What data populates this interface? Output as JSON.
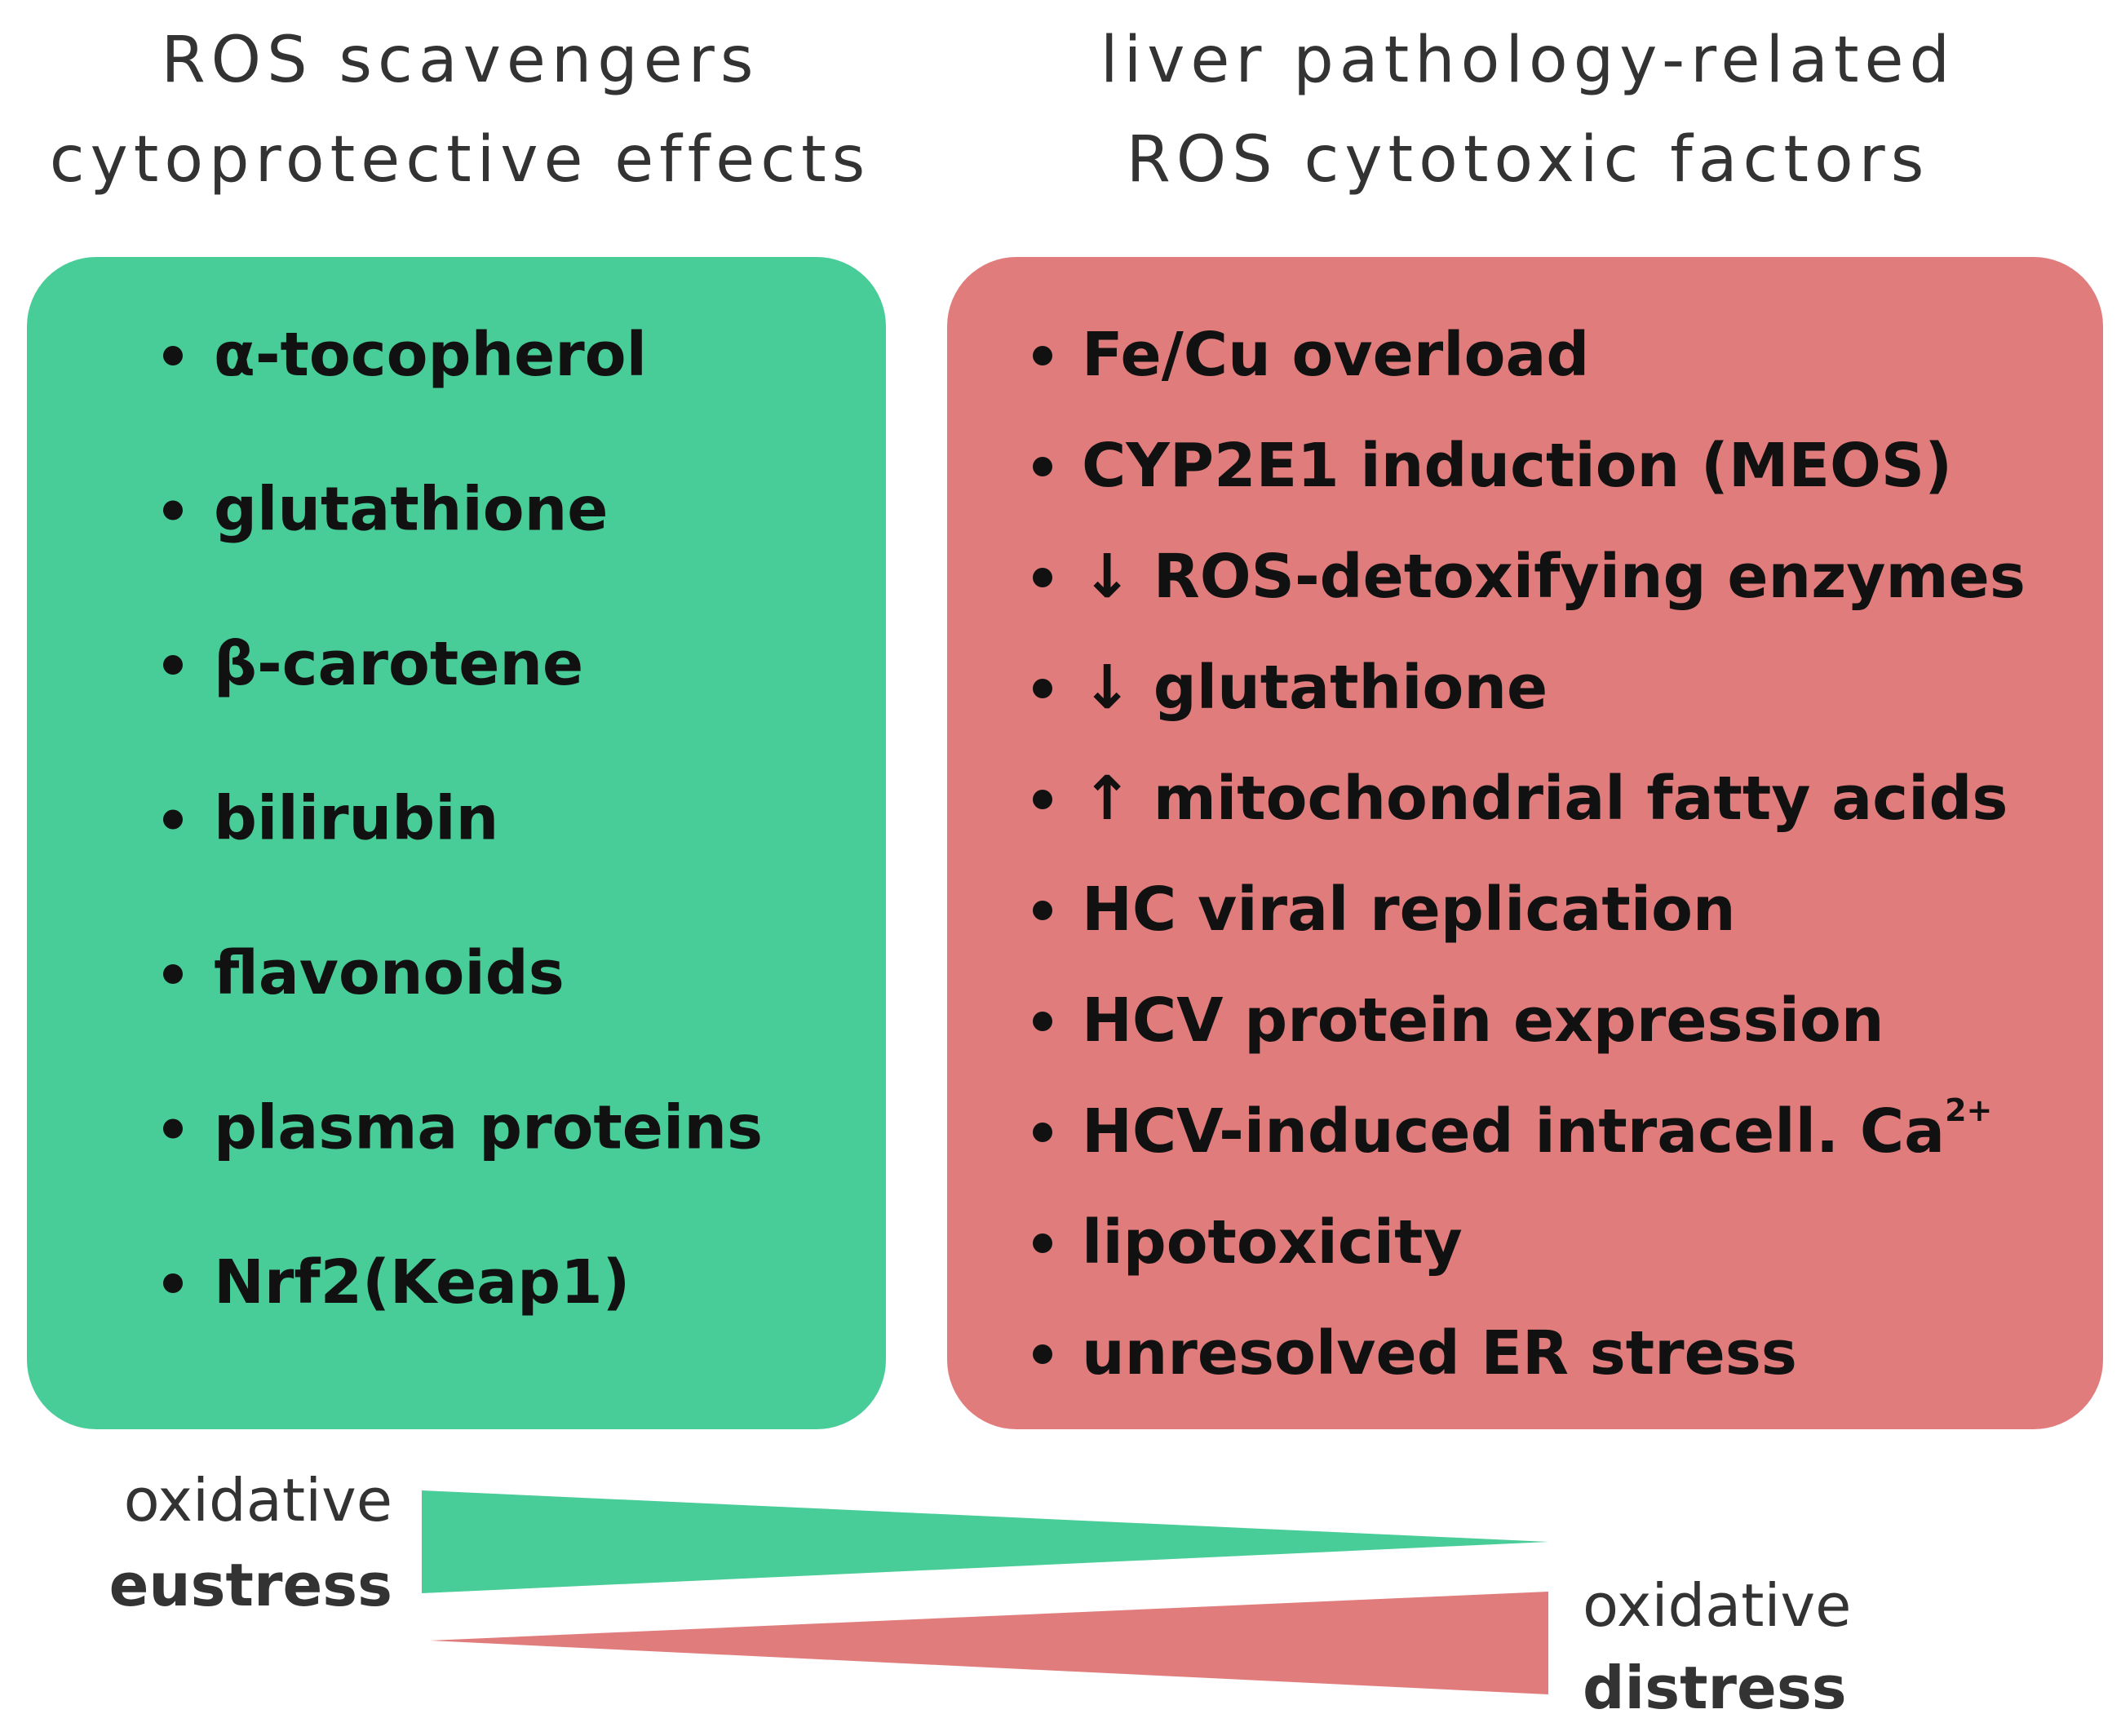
{
  "left_header": {
    "lines": [
      "ROS scavengers",
      "cytoprotective effects"
    ]
  },
  "right_header": {
    "lines": [
      "liver pathology-related",
      "ROS cytotoxic factors"
    ]
  },
  "left_box": {
    "items": [
      "α-tocopherol",
      "glutathione",
      "β-carotene",
      "bilirubin",
      "flavonoids",
      "plasma proteins",
      "Nrf2(Keap1)"
    ]
  },
  "right_box": {
    "items": [
      "Fe/Cu overload",
      "CYP2E1 induction (MEOS)",
      "↓ ROS-detoxifying enzymes",
      "↓ glutathione",
      "↑ mitochondrial fatty acids",
      "HC viral replication",
      "HCV protein expression",
      {
        "text": "HCV-induced intracell. Ca",
        "superscript": "2+"
      },
      "lipotoxicity",
      "unresolved ER stress"
    ]
  },
  "eustress_label": {
    "line1": "oxidative",
    "line2": "eustress"
  },
  "distress_label": {
    "line1": "oxidative",
    "line2": "distress"
  }
}
